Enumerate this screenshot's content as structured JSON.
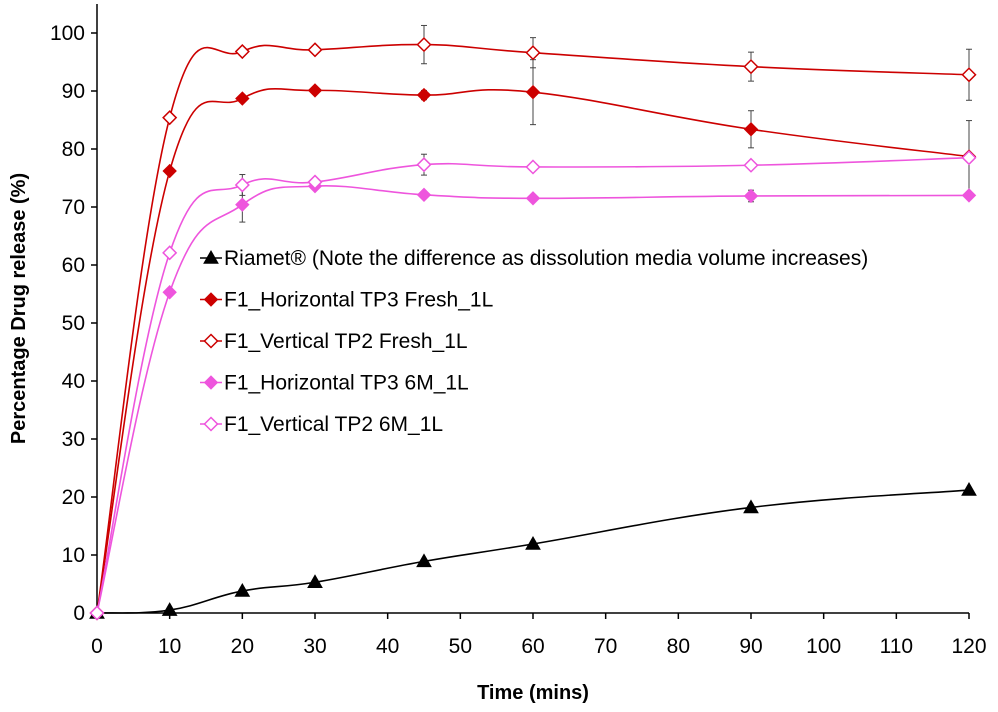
{
  "chart_data": {
    "type": "line",
    "title": "",
    "xlabel": "Time (mins)",
    "ylabel": "Percentage Drug release (%)",
    "xlim": [
      0,
      120
    ],
    "ylim": [
      0,
      105
    ],
    "x_ticks": [
      "0",
      "10",
      "20",
      "30",
      "40",
      "50",
      "60",
      "70",
      "80",
      "90",
      "100",
      "110",
      "120"
    ],
    "y_ticks": [
      "0",
      "10",
      "20",
      "30",
      "40",
      "50",
      "60",
      "70",
      "80",
      "90",
      "100"
    ],
    "grid": false,
    "legend_position": "center-right",
    "x": [
      0,
      10,
      20,
      30,
      45,
      60,
      90,
      120
    ],
    "series": [
      {
        "name": "Riamet® (Note the difference as dissolution media volume increases)",
        "color": "#000000",
        "marker": "filled-triangle",
        "values": [
          0,
          0.5,
          3.8,
          5.3,
          8.9,
          11.9,
          18.2,
          21.2
        ],
        "errors": [
          0,
          0,
          0,
          0,
          0,
          0,
          0,
          0
        ]
      },
      {
        "name": "F1_Horizontal TP3 Fresh_1L",
        "color": "#cc0000",
        "marker": "filled-diamond",
        "values": [
          0,
          76.2,
          88.7,
          90.1,
          89.3,
          89.8,
          83.4,
          78.7
        ],
        "errors": [
          0,
          0,
          0,
          0,
          0.8,
          5.6,
          3.2,
          6.2
        ]
      },
      {
        "name": "F1_Vertical TP2 Fresh_1L",
        "color": "#cc0000",
        "marker": "open-diamond",
        "values": [
          0,
          85.4,
          96.8,
          97.1,
          98.0,
          96.6,
          94.2,
          92.8
        ],
        "errors": [
          0,
          0,
          0,
          0,
          3.3,
          2.6,
          2.5,
          4.4
        ]
      },
      {
        "name": "F1_Horizontal TP3 6M_1L",
        "color": "#ee55dd",
        "marker": "filled-diamond",
        "values": [
          0,
          55.3,
          70.4,
          73.6,
          72.1,
          71.5,
          71.9,
          72.0
        ],
        "errors": [
          0,
          0,
          3.0,
          0,
          0,
          0,
          1.0,
          0
        ]
      },
      {
        "name": "F1_Vertical TP2 6M_1L",
        "color": "#ee55dd",
        "marker": "open-diamond",
        "values": [
          0,
          62.1,
          73.8,
          74.3,
          77.3,
          76.9,
          77.2,
          78.5
        ],
        "errors": [
          0,
          0,
          1.8,
          0,
          1.8,
          0,
          0,
          0
        ]
      }
    ]
  }
}
